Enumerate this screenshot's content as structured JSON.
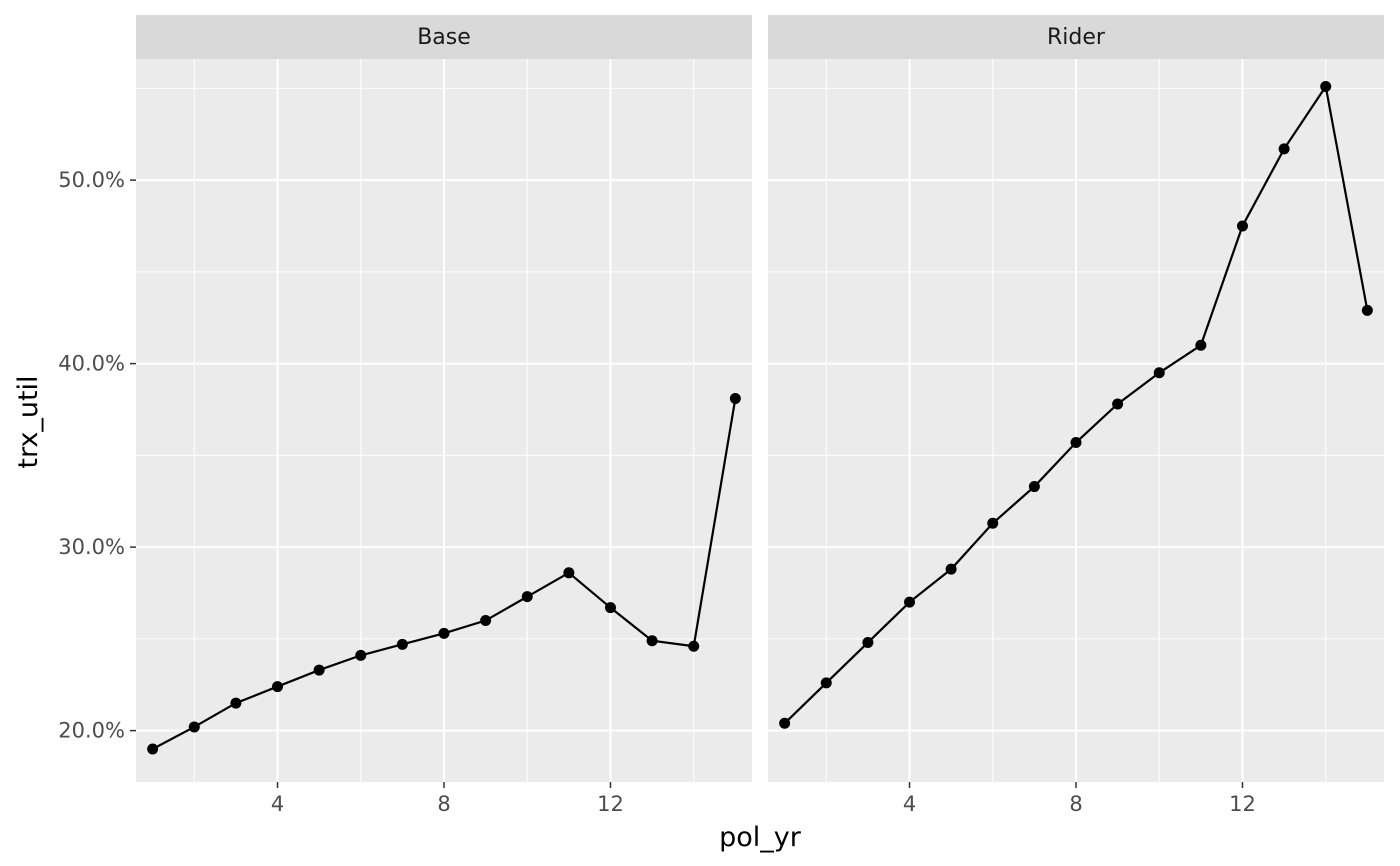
{
  "chart_data": {
    "type": "line",
    "xlabel": "pol_yr",
    "ylabel": "trx_util",
    "xlim": [
      0.6,
      15.4
    ],
    "ylim": [
      0.172,
      0.566
    ],
    "x_ticks": [
      4,
      8,
      12
    ],
    "y_ticks": [
      0.2,
      0.3,
      0.4,
      0.5
    ],
    "y_tick_labels": [
      "20.0%",
      "30.0%",
      "40.0%",
      "50.0%"
    ],
    "grid": true,
    "markers": true,
    "line_color": "#000000",
    "panel_background": "#ebebeb",
    "strip_background": "#d9d9d9",
    "facets": [
      {
        "label": "Base",
        "x": [
          1,
          2,
          3,
          4,
          5,
          6,
          7,
          8,
          9,
          10,
          11,
          12,
          13,
          14,
          15
        ],
        "y": [
          0.19,
          0.202,
          0.215,
          0.224,
          0.233,
          0.241,
          0.247,
          0.253,
          0.26,
          0.273,
          0.286,
          0.267,
          0.249,
          0.246,
          0.381
        ]
      },
      {
        "label": "Rider",
        "x": [
          1,
          2,
          3,
          4,
          5,
          6,
          7,
          8,
          9,
          10,
          11,
          12,
          13,
          14,
          15
        ],
        "y": [
          0.204,
          0.226,
          0.248,
          0.27,
          0.288,
          0.313,
          0.333,
          0.357,
          0.378,
          0.395,
          0.41,
          0.475,
          0.517,
          0.551,
          0.429
        ]
      }
    ]
  }
}
